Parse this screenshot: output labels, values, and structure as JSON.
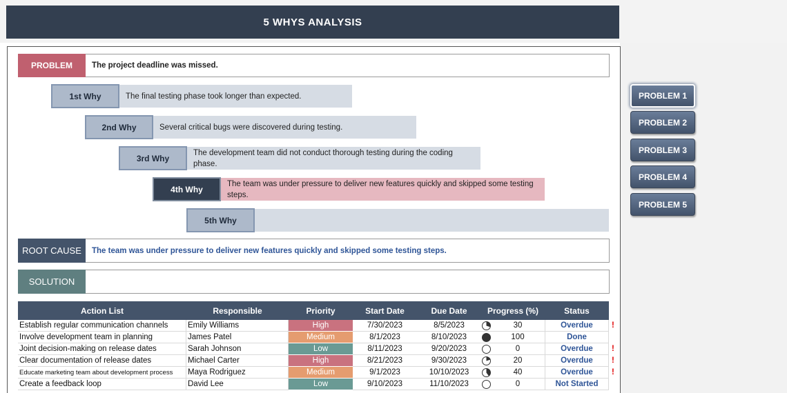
{
  "header": {
    "title": "5 WHYS ANALYSIS"
  },
  "problem": {
    "label": "PROBLEM",
    "text": "The project deadline was missed."
  },
  "whys": [
    {
      "label": "1st Why",
      "text": "The final testing phase took longer than expected."
    },
    {
      "label": "2nd Why",
      "text": "Several critical bugs were discovered during testing."
    },
    {
      "label": "3rd Why",
      "text": "The development team did not conduct thorough testing during the coding phase."
    },
    {
      "label": "4th Why",
      "text": "The team was under pressure to deliver new features quickly and skipped some testing steps."
    },
    {
      "label": "5th Why"
    }
  ],
  "root_cause": {
    "label": "ROOT CAUSE",
    "text": "The team was under pressure to deliver new features quickly and skipped some testing steps."
  },
  "solution": {
    "label": "SOLUTION"
  },
  "table": {
    "columns": [
      "Action List",
      "Responsible",
      "Priority",
      "Start Date",
      "Due Date",
      "Progress (%)",
      "Status"
    ],
    "rows": [
      {
        "action": "Establish regular communication channels",
        "responsible": "Emily Williams",
        "priority": "High",
        "start": "7/30/2023",
        "due": "8/5/2023",
        "progress": 30,
        "status": "Overdue",
        "flag": "!"
      },
      {
        "action": "Involve development team in planning",
        "responsible": "James Patel",
        "priority": "Medium",
        "start": "8/1/2023",
        "due": "8/10/2023",
        "progress": 100,
        "status": "Done"
      },
      {
        "action": "Joint decision-making on release dates",
        "responsible": "Sarah Johnson",
        "priority": "Low",
        "start": "8/11/2023",
        "due": "9/20/2023",
        "progress": 0,
        "status": "Overdue",
        "flag": "!"
      },
      {
        "action": "Clear documentation of release dates",
        "responsible": "Michael Carter",
        "priority": "High",
        "start": "8/21/2023",
        "due": "9/30/2023",
        "progress": 20,
        "status": "Overdue",
        "flag": "!"
      },
      {
        "action": "Educate marketing team about development process",
        "responsible": "Maya Rodriguez",
        "priority": "Medium",
        "start": "9/1/2023",
        "due": "10/10/2023",
        "progress": 40,
        "status": "Overdue",
        "flag": "!"
      },
      {
        "action": "Create a feedback loop",
        "responsible": "David Lee",
        "priority": "Low",
        "start": "9/10/2023",
        "due": "11/10/2023",
        "progress": 0,
        "status": "Not Started"
      }
    ]
  },
  "buttons": [
    "PROBLEM 1",
    "PROBLEM 2",
    "PROBLEM 3",
    "PROBLEM 4",
    "PROBLEM 5"
  ]
}
